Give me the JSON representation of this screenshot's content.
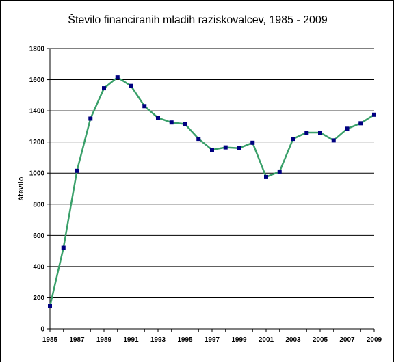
{
  "chart_data": {
    "type": "line",
    "title": "Število financiranih mladih raziskovalcev, 1985 - 2009",
    "xlabel": "",
    "ylabel": "število",
    "ylim": [
      0,
      1800
    ],
    "yticks": [
      0,
      200,
      400,
      600,
      800,
      1000,
      1200,
      1400,
      1600,
      1800
    ],
    "xlim": [
      1985,
      2009
    ],
    "xtick_labels": [
      "1985",
      "1987",
      "1989",
      "1991",
      "1993",
      "1995",
      "1997",
      "1999",
      "2001",
      "2003",
      "2005",
      "2007",
      "2009"
    ],
    "grid": true,
    "legend": "none",
    "series": [
      {
        "x": [
          1985,
          1986,
          1987,
          1988,
          1989,
          1990,
          1991,
          1992,
          1993,
          1994,
          1995,
          1996,
          1997,
          1998,
          1999,
          2000,
          2001,
          2002,
          2003,
          2004,
          2005,
          2006,
          2007,
          2008,
          2009
        ],
        "values": [
          145,
          520,
          1015,
          1350,
          1545,
          1615,
          1560,
          1430,
          1355,
          1325,
          1315,
          1220,
          1150,
          1165,
          1160,
          1195,
          975,
          1010,
          1220,
          1260,
          1260,
          1210,
          1285,
          1320,
          1375
        ]
      }
    ],
    "colors": {
      "line": "#3aa06a",
      "marker": "#000080",
      "grid": "#000000"
    }
  }
}
